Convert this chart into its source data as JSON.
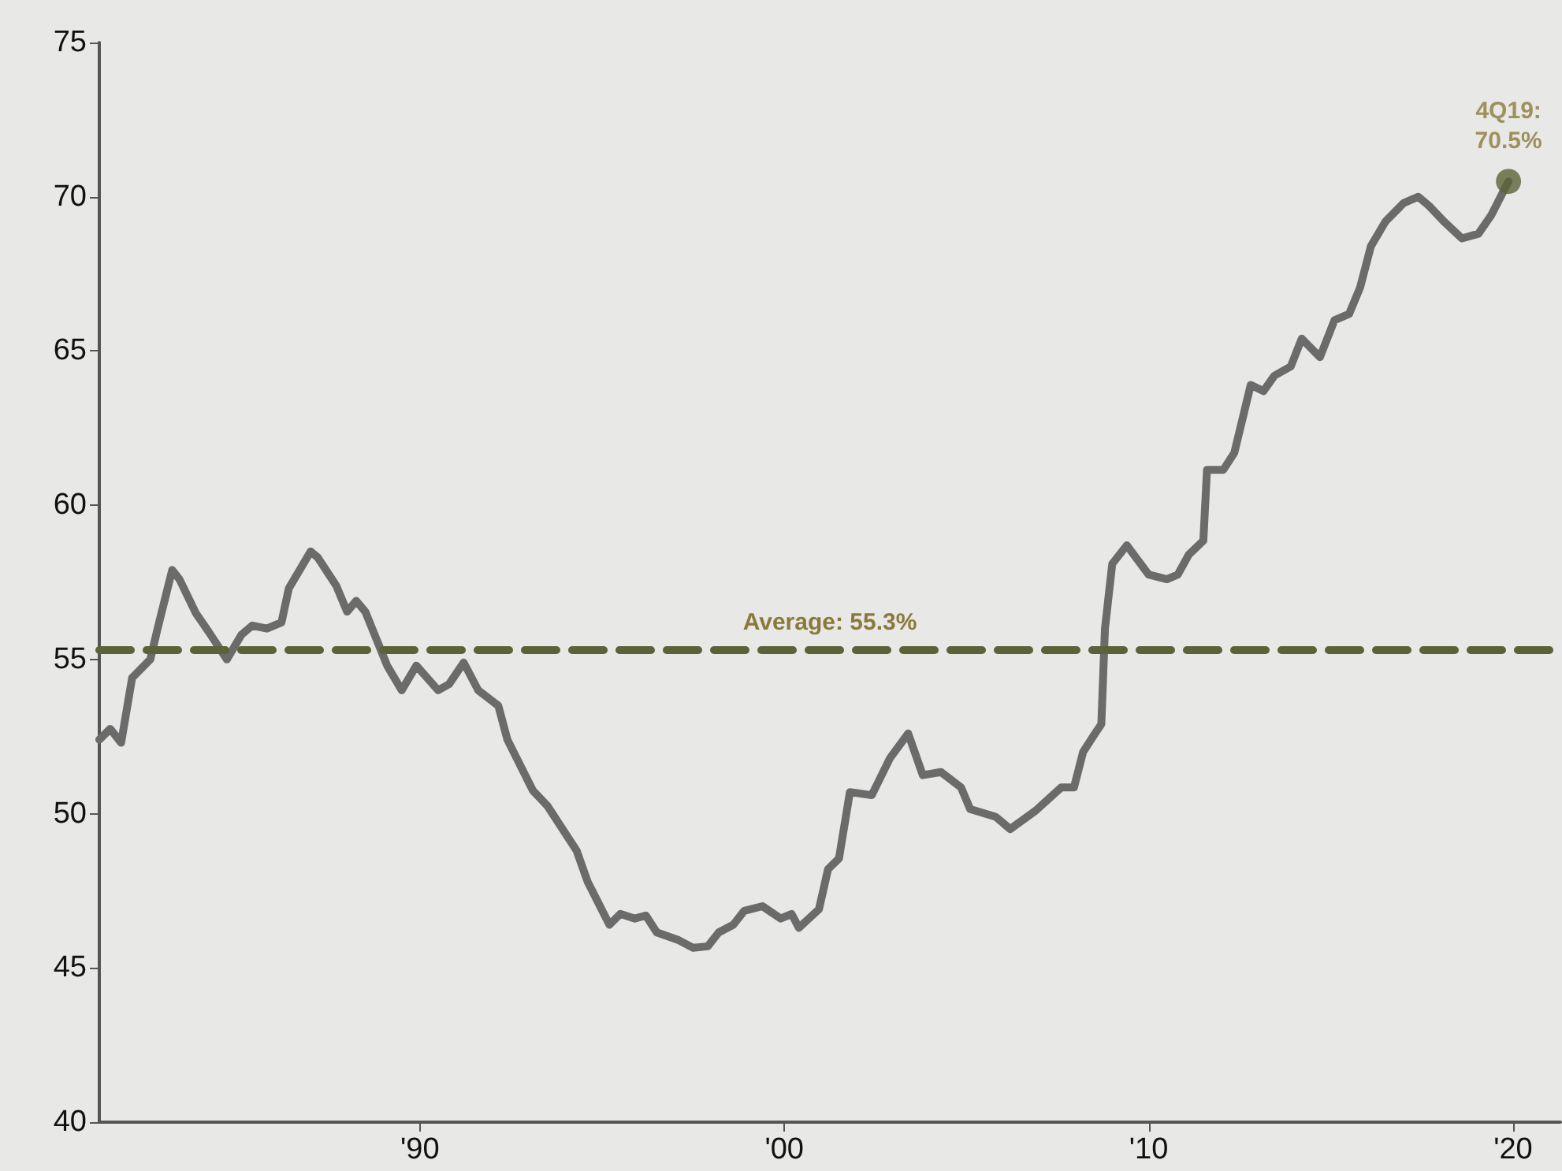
{
  "chart_data": {
    "type": "line",
    "x": [
      1981.2,
      1981.5,
      1981.8,
      1982.1,
      1982.6,
      1982.8,
      1983.2,
      1983.4,
      1983.85,
      1984.2,
      1984.7,
      1985.1,
      1985.4,
      1985.8,
      1986.2,
      1986.4,
      1987.0,
      1987.2,
      1987.7,
      1988.0,
      1988.25,
      1988.5,
      1989.1,
      1989.5,
      1989.9,
      1990.5,
      1990.8,
      1991.2,
      1991.6,
      1992.15,
      1992.4,
      1993.1,
      1993.5,
      1994.3,
      1994.6,
      1995.2,
      1995.5,
      1995.9,
      1996.2,
      1996.5,
      1997.1,
      1997.5,
      1997.9,
      1998.2,
      1998.6,
      1998.9,
      1999.4,
      1999.9,
      2000.2,
      2000.4,
      2000.95,
      2001.2,
      2001.5,
      2001.8,
      2002.4,
      2002.9,
      2003.4,
      2003.8,
      2004.3,
      2004.85,
      2005.1,
      2005.8,
      2006.2,
      2006.9,
      2007.6,
      2007.95,
      2008.2,
      2008.5,
      2008.7,
      2008.8,
      2009.0,
      2009.4,
      2010.0,
      2010.5,
      2010.8,
      2011.1,
      2011.5,
      2011.6,
      2012.05,
      2012.35,
      2012.8,
      2013.15,
      2013.45,
      2013.9,
      2014.2,
      2014.7,
      2015.1,
      2015.5,
      2015.8,
      2016.1,
      2016.5,
      2017.0,
      2017.4,
      2017.7,
      2018.1,
      2018.6,
      2019.05,
      2019.4,
      2019.875
    ],
    "series": [
      {
        "color": "#6b6b6b",
        "values": [
          52.4,
          52.75,
          52.3,
          54.4,
          55.0,
          56.0,
          57.9,
          57.6,
          56.5,
          55.9,
          55.0,
          55.8,
          56.1,
          56.0,
          56.2,
          57.3,
          58.5,
          58.3,
          57.4,
          56.55,
          56.9,
          56.55,
          54.8,
          54.0,
          54.8,
          54.0,
          54.2,
          54.9,
          54.0,
          53.5,
          52.4,
          50.75,
          50.25,
          48.8,
          47.8,
          46.4,
          46.75,
          46.6,
          46.7,
          46.15,
          45.9,
          45.65,
          45.7,
          46.15,
          46.4,
          46.85,
          47.0,
          46.6,
          46.75,
          46.3,
          46.9,
          48.2,
          48.55,
          50.7,
          50.6,
          51.8,
          52.6,
          51.25,
          51.35,
          50.85,
          50.15,
          49.9,
          49.5,
          50.1,
          50.85,
          50.85,
          52.0,
          52.55,
          52.9,
          56.0,
          58.1,
          58.7,
          57.75,
          57.6,
          57.75,
          58.4,
          58.85,
          61.15,
          61.15,
          61.7,
          63.9,
          63.7,
          64.2,
          64.5,
          65.4,
          64.8,
          66.0,
          66.2,
          67.05,
          68.4,
          69.2,
          69.8,
          70.0,
          69.7,
          69.2,
          68.65,
          68.8,
          69.4,
          70.5
        ]
      }
    ],
    "xlim": [
      1981.2,
      2021.3
    ],
    "xticks": [
      {
        "value": 1990,
        "label": "'90"
      },
      {
        "value": 2000,
        "label": "'00"
      },
      {
        "value": 2010,
        "label": "'10"
      },
      {
        "value": 2020,
        "label": "'20"
      }
    ],
    "ylim": [
      40,
      75
    ],
    "yticks": [
      40,
      45,
      50,
      55,
      60,
      65,
      70,
      75
    ],
    "ref_lines": [
      {
        "axis": "y",
        "value": 55.3,
        "label": "Average: 55.3%",
        "color": "#5b6237",
        "line_style": "dashed"
      }
    ],
    "annotations": [
      {
        "text": "4Q19:\n70.5%",
        "x": 2019.875,
        "y": 70.5
      }
    ],
    "grid": false,
    "marker": "none",
    "line_style": "solid"
  }
}
